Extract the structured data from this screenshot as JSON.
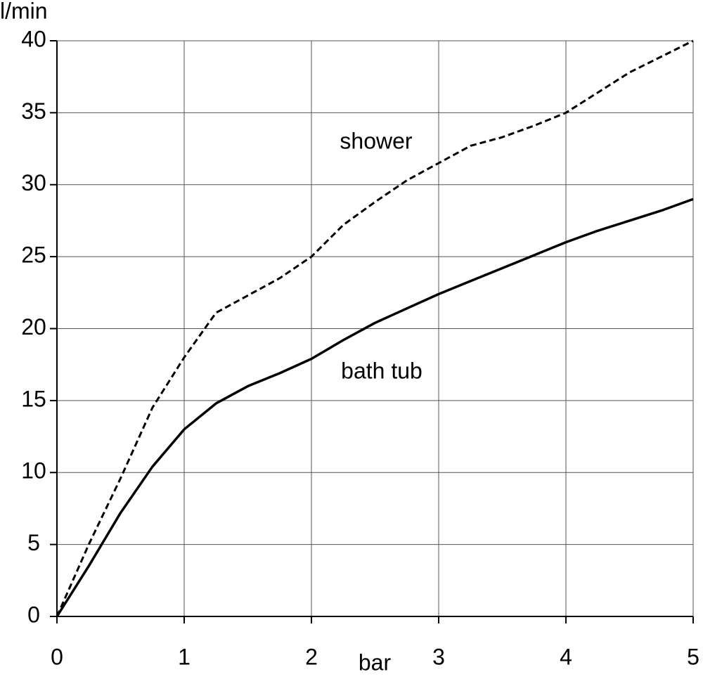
{
  "chart_data": {
    "type": "line",
    "y_label": "l/min",
    "x_label": "bar",
    "x": [
      0,
      0.25,
      0.5,
      0.75,
      1,
      1.25,
      1.5,
      1.75,
      2,
      2.25,
      2.5,
      2.75,
      3,
      3.25,
      3.5,
      3.75,
      4,
      4.25,
      4.5,
      4.75,
      5
    ],
    "series": [
      {
        "name": "shower",
        "color": "#000000",
        "dashed": true,
        "values": [
          0,
          5,
          9.6,
          14.5,
          18,
          21.1,
          22.3,
          23.5,
          25,
          27.2,
          28.8,
          30.3,
          31.5,
          32.7,
          33.3,
          34.1,
          35,
          36.4,
          37.8,
          38.9,
          40
        ]
      },
      {
        "name": "bath tub",
        "color": "#000000",
        "dashed": false,
        "values": [
          0,
          3.5,
          7.2,
          10.4,
          13,
          14.8,
          16,
          16.9,
          17.9,
          19.2,
          20.4,
          21.4,
          22.4,
          23.3,
          24.2,
          25.1,
          26,
          26.8,
          27.5,
          28.2,
          29
        ]
      }
    ],
    "xlim": [
      0,
      5
    ],
    "xticks": [
      0,
      1,
      2,
      3,
      4,
      5
    ],
    "ylim": [
      0,
      40
    ],
    "yticks": [
      0,
      5,
      10,
      15,
      20,
      25,
      30,
      35,
      40
    ],
    "grid": true
  }
}
